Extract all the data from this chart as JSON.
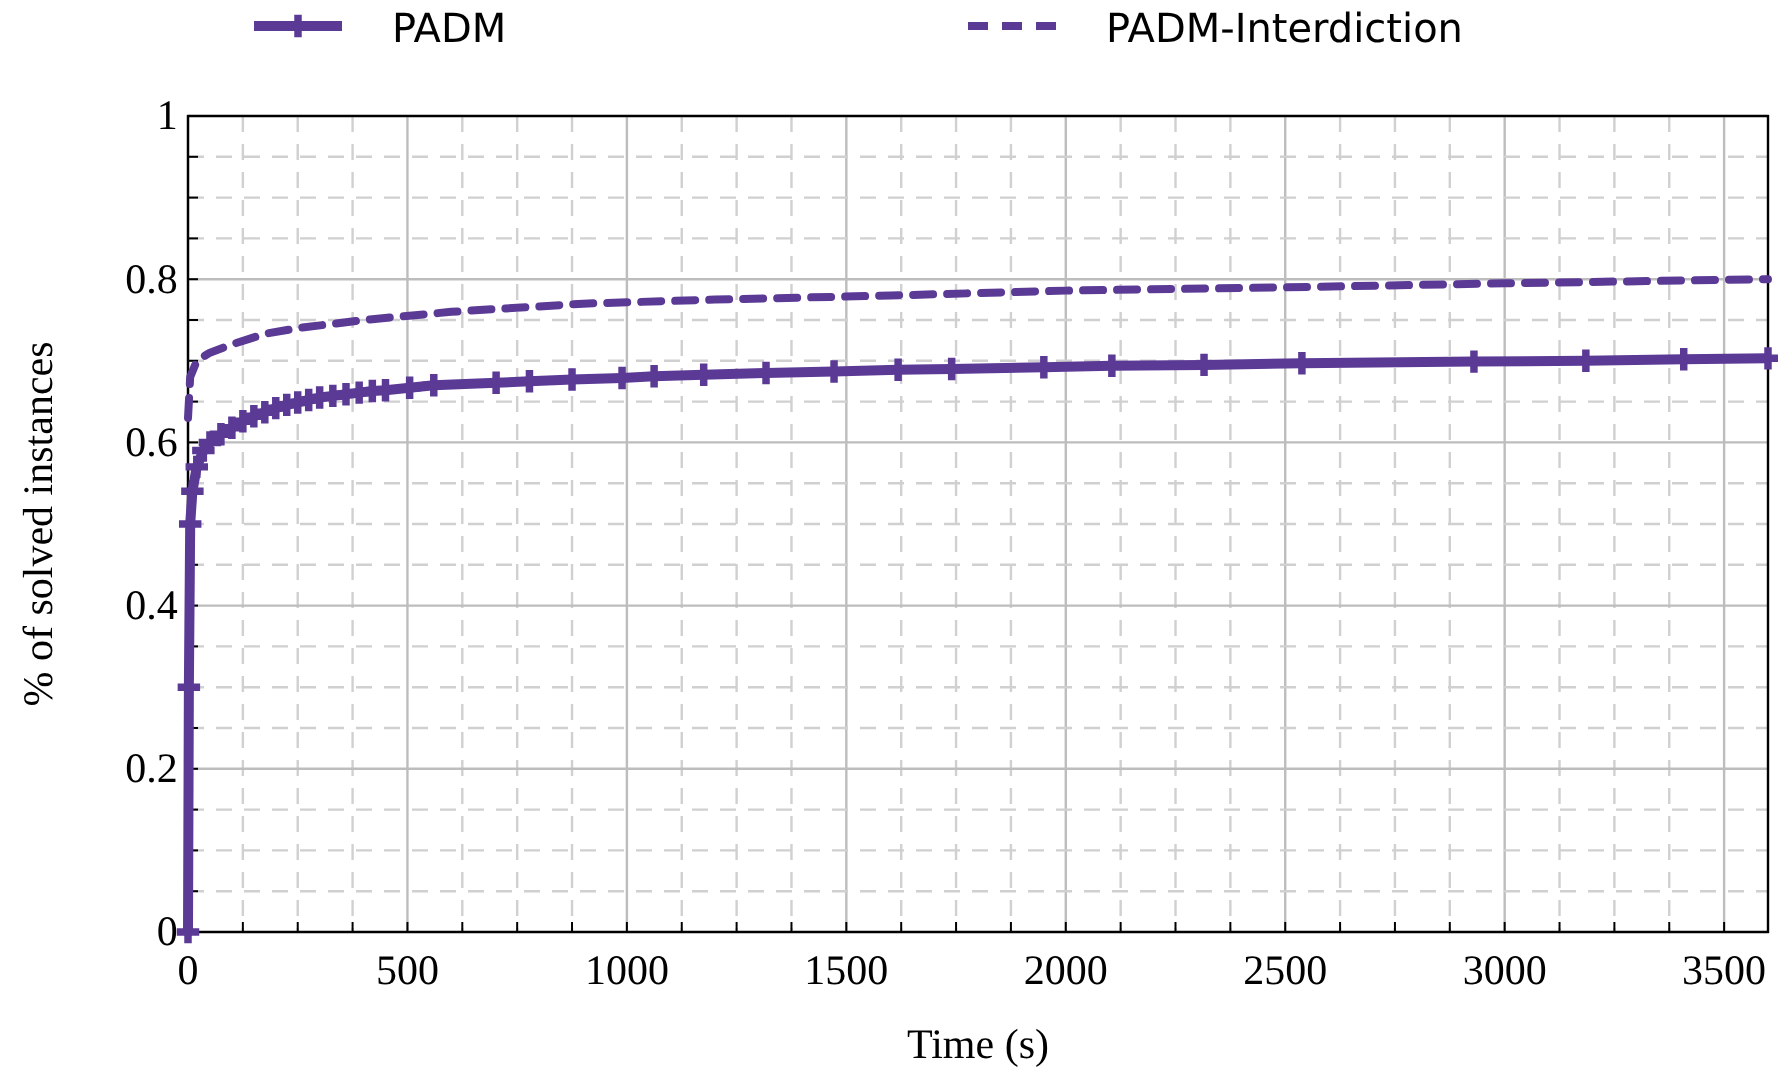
{
  "chart_data": {
    "type": "line",
    "xlabel": "Time (s)",
    "ylabel": "% of solved instances",
    "xlim": [
      0,
      3600
    ],
    "ylim": [
      0,
      1
    ],
    "xticks": [
      0,
      {
        "value": 125,
        "label": null
      },
      {
        "value": 250,
        "label": null
      },
      {
        "value": 375,
        "label": null
      },
      500,
      {
        "value": 625,
        "label": null
      },
      {
        "value": 750,
        "label": null
      },
      {
        "value": 875,
        "label": null
      },
      1000,
      {
        "value": 1125,
        "label": null
      },
      {
        "value": 1250,
        "label": null
      },
      {
        "value": 1375,
        "label": null
      },
      1500,
      {
        "value": 1625,
        "label": null
      },
      {
        "value": 1750,
        "label": null
      },
      {
        "value": 1875,
        "label": null
      },
      2000,
      {
        "value": 2125,
        "label": null
      },
      {
        "value": 2250,
        "label": null
      },
      {
        "value": 2375,
        "label": null
      },
      2500,
      {
        "value": 2625,
        "label": null
      },
      {
        "value": 2750,
        "label": null
      },
      {
        "value": 2875,
        "label": null
      },
      3000,
      {
        "value": 3125,
        "label": null
      },
      {
        "value": 3250,
        "label": null
      },
      {
        "value": 3375,
        "label": null
      },
      3500
    ],
    "yticks": [
      0,
      {
        "value": 0.05,
        "label": null
      },
      {
        "value": 0.1,
        "label": null
      },
      {
        "value": 0.15,
        "label": null
      },
      0.2,
      {
        "value": 0.25,
        "label": null
      },
      {
        "value": 0.3,
        "label": null
      },
      {
        "value": 0.35,
        "label": null
      },
      0.4,
      {
        "value": 0.45,
        "label": null
      },
      {
        "value": 0.5,
        "label": null
      },
      {
        "value": 0.55,
        "label": null
      },
      0.6,
      {
        "value": 0.65,
        "label": null
      },
      {
        "value": 0.7,
        "label": null
      },
      {
        "value": 0.75,
        "label": null
      },
      0.8,
      {
        "value": 0.85,
        "label": null
      },
      {
        "value": 0.9,
        "label": null
      },
      {
        "value": 0.95,
        "label": null
      },
      1
    ],
    "grid": true,
    "legend": "top",
    "series": [
      {
        "name": "PADM",
        "color": "#5b3a96",
        "marker": "cross",
        "line_style": "solid",
        "x": [
          0,
          2,
          5,
          10,
          20,
          35,
          50,
          75,
          100,
          125,
          150,
          175,
          200,
          225,
          250,
          275,
          300,
          330,
          360,
          390,
          420,
          450,
          505,
          560,
          702,
          778,
          875,
          989,
          1062,
          1175,
          1317,
          1472,
          1618,
          1740,
          1950,
          2105,
          2315,
          2538,
          2930,
          3185,
          3408,
          3600
        ],
        "values": [
          0,
          0.3,
          0.5,
          0.54,
          0.57,
          0.59,
          0.6,
          0.61,
          0.618,
          0.626,
          0.632,
          0.637,
          0.642,
          0.646,
          0.649,
          0.652,
          0.655,
          0.657,
          0.659,
          0.661,
          0.663,
          0.664,
          0.667,
          0.67,
          0.673,
          0.675,
          0.677,
          0.679,
          0.681,
          0.683,
          0.685,
          0.687,
          0.689,
          0.69,
          0.692,
          0.694,
          0.695,
          0.697,
          0.699,
          0.7,
          0.702,
          0.703
        ]
      },
      {
        "name": "PADM-Interdiction",
        "color": "#5b3a96",
        "marker": "none",
        "line_style": "dashed",
        "x": [
          0,
          5,
          20,
          50,
          100,
          175,
          250,
          400,
          600,
          900,
          1200,
          1600,
          2000,
          2500,
          3000,
          3600
        ],
        "values": [
          0.63,
          0.68,
          0.7,
          0.71,
          0.72,
          0.733,
          0.74,
          0.75,
          0.76,
          0.77,
          0.775,
          0.78,
          0.786,
          0.79,
          0.795,
          0.8
        ]
      }
    ]
  }
}
